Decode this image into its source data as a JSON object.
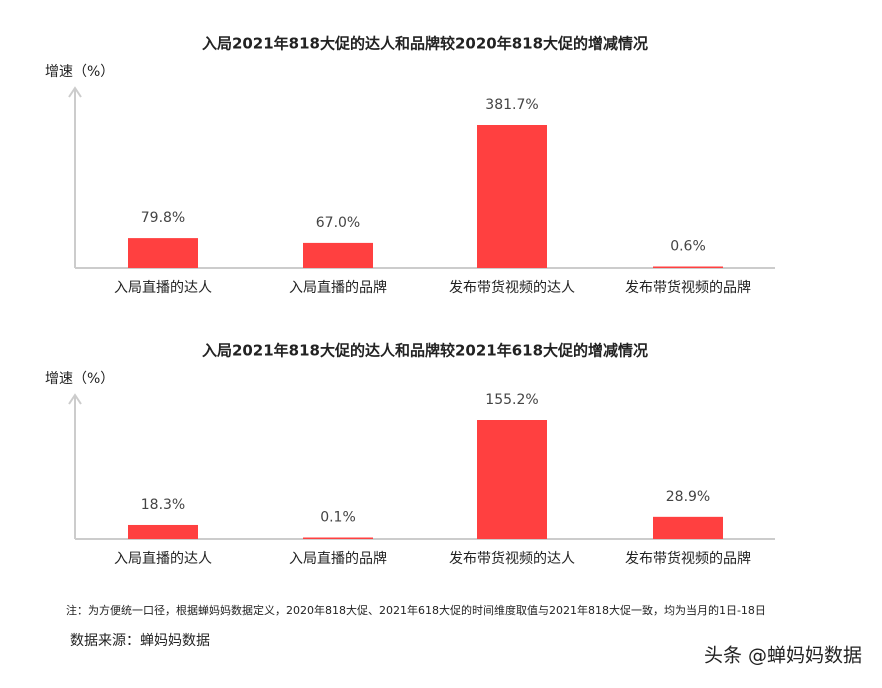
{
  "chart_data": [
    {
      "type": "bar",
      "title": "入局2021年818大促的达人和品牌较2020年818大促的增减情况",
      "y_label": "增速（%）",
      "categories": [
        "入局直播的达人",
        "入局直播的品牌",
        "发布带货视频的达人",
        "发布带货视频的品牌"
      ],
      "values": [
        79.8,
        67.0,
        381.7,
        0.6
      ],
      "value_labels": [
        "79.8%",
        "67.0%",
        "381.7%",
        "0.6%"
      ],
      "color": "#ff4040"
    },
    {
      "type": "bar",
      "title": "入局2021年818大促的达人和品牌较2021年618大促的增减情况",
      "y_label": "增速（%）",
      "categories": [
        "入局直播的达人",
        "入局直播的品牌",
        "发布带货视频的达人",
        "发布带货视频的品牌"
      ],
      "values": [
        18.3,
        0.1,
        155.2,
        28.9
      ],
      "value_labels": [
        "18.3%",
        "0.1%",
        "155.2%",
        "28.9%"
      ],
      "color": "#ff4040"
    }
  ],
  "note": "注：为方便统一口径，根据蝉妈妈数据定义，2020年818大促、2021年618大促的时间维度取值与2021年818大促一致，均为当月的1日-18日",
  "source": "数据来源：蝉妈妈数据",
  "brand": "头条 @蝉妈妈数据"
}
